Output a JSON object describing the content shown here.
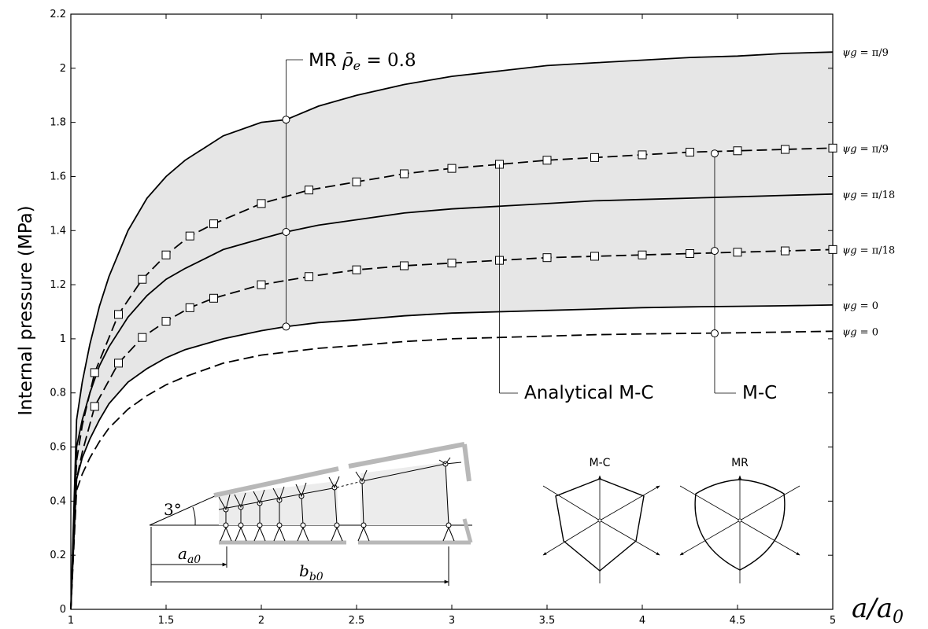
{
  "chart_data": {
    "type": "line",
    "title": "",
    "xlabel": "a/a0",
    "ylabel": "Internal pressure (MPa)",
    "xlim": [
      1,
      5
    ],
    "ylim": [
      0,
      2.2
    ],
    "x_ticks": [
      1,
      1.5,
      2,
      2.5,
      3,
      3.5,
      4,
      4.5,
      5
    ],
    "x_tick_labels": [
      "1",
      "1.5",
      "2",
      "2.5",
      "3",
      "3.5",
      "4",
      "4.5",
      "5"
    ],
    "y_ticks": [
      0,
      0.2,
      0.4,
      0.6,
      0.8,
      1,
      1.2,
      1.4,
      1.6,
      1.8,
      2,
      2.2
    ],
    "y_tick_labels": [
      "0",
      "0.2",
      "0.4",
      "0.6",
      "0.8",
      "1",
      "1.2",
      "1.4",
      "1.6",
      "1.8",
      "2",
      "2.2"
    ],
    "grid": false,
    "series": [
      {
        "style": "solid",
        "label": "ψg = π/9",
        "x": [
          1,
          1.03,
          1.06,
          1.1,
          1.15,
          1.2,
          1.3,
          1.4,
          1.5,
          1.6,
          1.8,
          2,
          2.13,
          2.3,
          2.5,
          2.75,
          3,
          3.25,
          3.5,
          3.75,
          4,
          4.25,
          4.5,
          4.75,
          5
        ],
        "y": [
          0,
          0.7,
          0.84,
          0.98,
          1.12,
          1.23,
          1.4,
          1.52,
          1.6,
          1.66,
          1.75,
          1.8,
          1.81,
          1.86,
          1.9,
          1.94,
          1.97,
          1.99,
          2.01,
          2.02,
          2.03,
          2.04,
          2.045,
          2.055,
          2.06
        ]
      },
      {
        "style": "solid",
        "label": "ψg = π/18",
        "x": [
          1,
          1.03,
          1.06,
          1.1,
          1.15,
          1.2,
          1.3,
          1.4,
          1.5,
          1.6,
          1.8,
          2,
          2.13,
          2.3,
          2.5,
          2.75,
          3,
          3.25,
          3.5,
          3.75,
          4,
          4.25,
          4.5,
          4.75,
          5
        ],
        "y": [
          0,
          0.6,
          0.7,
          0.8,
          0.9,
          0.97,
          1.08,
          1.16,
          1.22,
          1.26,
          1.33,
          1.37,
          1.395,
          1.42,
          1.44,
          1.465,
          1.48,
          1.49,
          1.5,
          1.51,
          1.515,
          1.52,
          1.525,
          1.53,
          1.535
        ]
      },
      {
        "style": "solid",
        "label": "ψg = 0",
        "x": [
          1,
          1.03,
          1.06,
          1.1,
          1.15,
          1.2,
          1.3,
          1.4,
          1.5,
          1.6,
          1.8,
          2,
          2.13,
          2.3,
          2.5,
          2.75,
          3,
          3.25,
          3.5,
          3.75,
          4,
          4.25,
          4.5,
          4.75,
          5
        ],
        "y": [
          0,
          0.48,
          0.56,
          0.63,
          0.7,
          0.76,
          0.84,
          0.89,
          0.93,
          0.96,
          1.0,
          1.03,
          1.045,
          1.06,
          1.07,
          1.085,
          1.095,
          1.1,
          1.105,
          1.11,
          1.115,
          1.118,
          1.12,
          1.122,
          1.125
        ]
      },
      {
        "style": "dashed",
        "marker": "square",
        "label": "ψg = π/9",
        "x": [
          1,
          1.03,
          1.06,
          1.125,
          1.25,
          1.375,
          1.5,
          1.625,
          1.75,
          2,
          2.25,
          2.5,
          2.75,
          3,
          3.25,
          3.5,
          3.75,
          4,
          4.25,
          4.5,
          4.75,
          5
        ],
        "y": [
          0,
          0.55,
          0.68,
          0.875,
          1.09,
          1.22,
          1.31,
          1.38,
          1.425,
          1.5,
          1.55,
          1.58,
          1.61,
          1.63,
          1.645,
          1.66,
          1.67,
          1.68,
          1.69,
          1.695,
          1.7,
          1.705
        ]
      },
      {
        "style": "dashed",
        "marker": "square",
        "label": "ψg = π/18",
        "x": [
          1,
          1.03,
          1.06,
          1.125,
          1.25,
          1.375,
          1.5,
          1.625,
          1.75,
          2,
          2.25,
          2.5,
          2.75,
          3,
          3.25,
          3.5,
          3.75,
          4,
          4.25,
          4.5,
          4.75,
          5
        ],
        "y": [
          0,
          0.48,
          0.58,
          0.75,
          0.91,
          1.005,
          1.065,
          1.115,
          1.15,
          1.2,
          1.23,
          1.255,
          1.27,
          1.28,
          1.29,
          1.3,
          1.305,
          1.31,
          1.315,
          1.32,
          1.325,
          1.33
        ]
      },
      {
        "style": "dashed",
        "label": "ψg = 0",
        "x": [
          1,
          1.03,
          1.06,
          1.1,
          1.15,
          1.2,
          1.3,
          1.4,
          1.5,
          1.6,
          1.8,
          2,
          2.3,
          2.5,
          2.75,
          3,
          3.25,
          3.5,
          3.75,
          4,
          4.25,
          4.5,
          4.75,
          5
        ],
        "y": [
          0,
          0.44,
          0.5,
          0.56,
          0.62,
          0.67,
          0.74,
          0.79,
          0.83,
          0.86,
          0.91,
          0.94,
          0.965,
          0.975,
          0.99,
          1.0,
          1.005,
          1.01,
          1.015,
          1.018,
          1.02,
          1.022,
          1.025,
          1.028
        ]
      }
    ],
    "shaded_band": "region between the ψg = π/9 and ψg = 0 solid curves, light grey",
    "annotations": [
      {
        "text_prefix": "MR ",
        "text_math": "ρ̄e = 0.8",
        "x": 2.13,
        "points_y": [
          1.81,
          1.395,
          1.045
        ]
      },
      {
        "text": "Analytical M-C",
        "x": 3.25,
        "points_y": [
          1.645,
          1.29
        ]
      },
      {
        "text": "M-C",
        "x": 4.38,
        "points_y": [
          1.685,
          1.325,
          1.02
        ]
      }
    ],
    "right_labels": [
      {
        "prefix": "ψg = ",
        "value": "π/9",
        "y": 2.06
      },
      {
        "prefix": "ψg = ",
        "value": "π/9",
        "y": 1.705
      },
      {
        "prefix": "ψg = ",
        "value": "π/18",
        "y": 1.535
      },
      {
        "prefix": "ψg = ",
        "value": "π/18",
        "y": 1.33
      },
      {
        "prefix": "ψg = ",
        "value": "0",
        "y": 1.125
      },
      {
        "prefix": "ψg = ",
        "value": "0",
        "y": 1.028
      }
    ],
    "inset": {
      "angle_label": "3°",
      "a0_label": "a0",
      "b0_label": "b0",
      "yield_surfaces": [
        "M-C",
        "MR"
      ]
    }
  }
}
